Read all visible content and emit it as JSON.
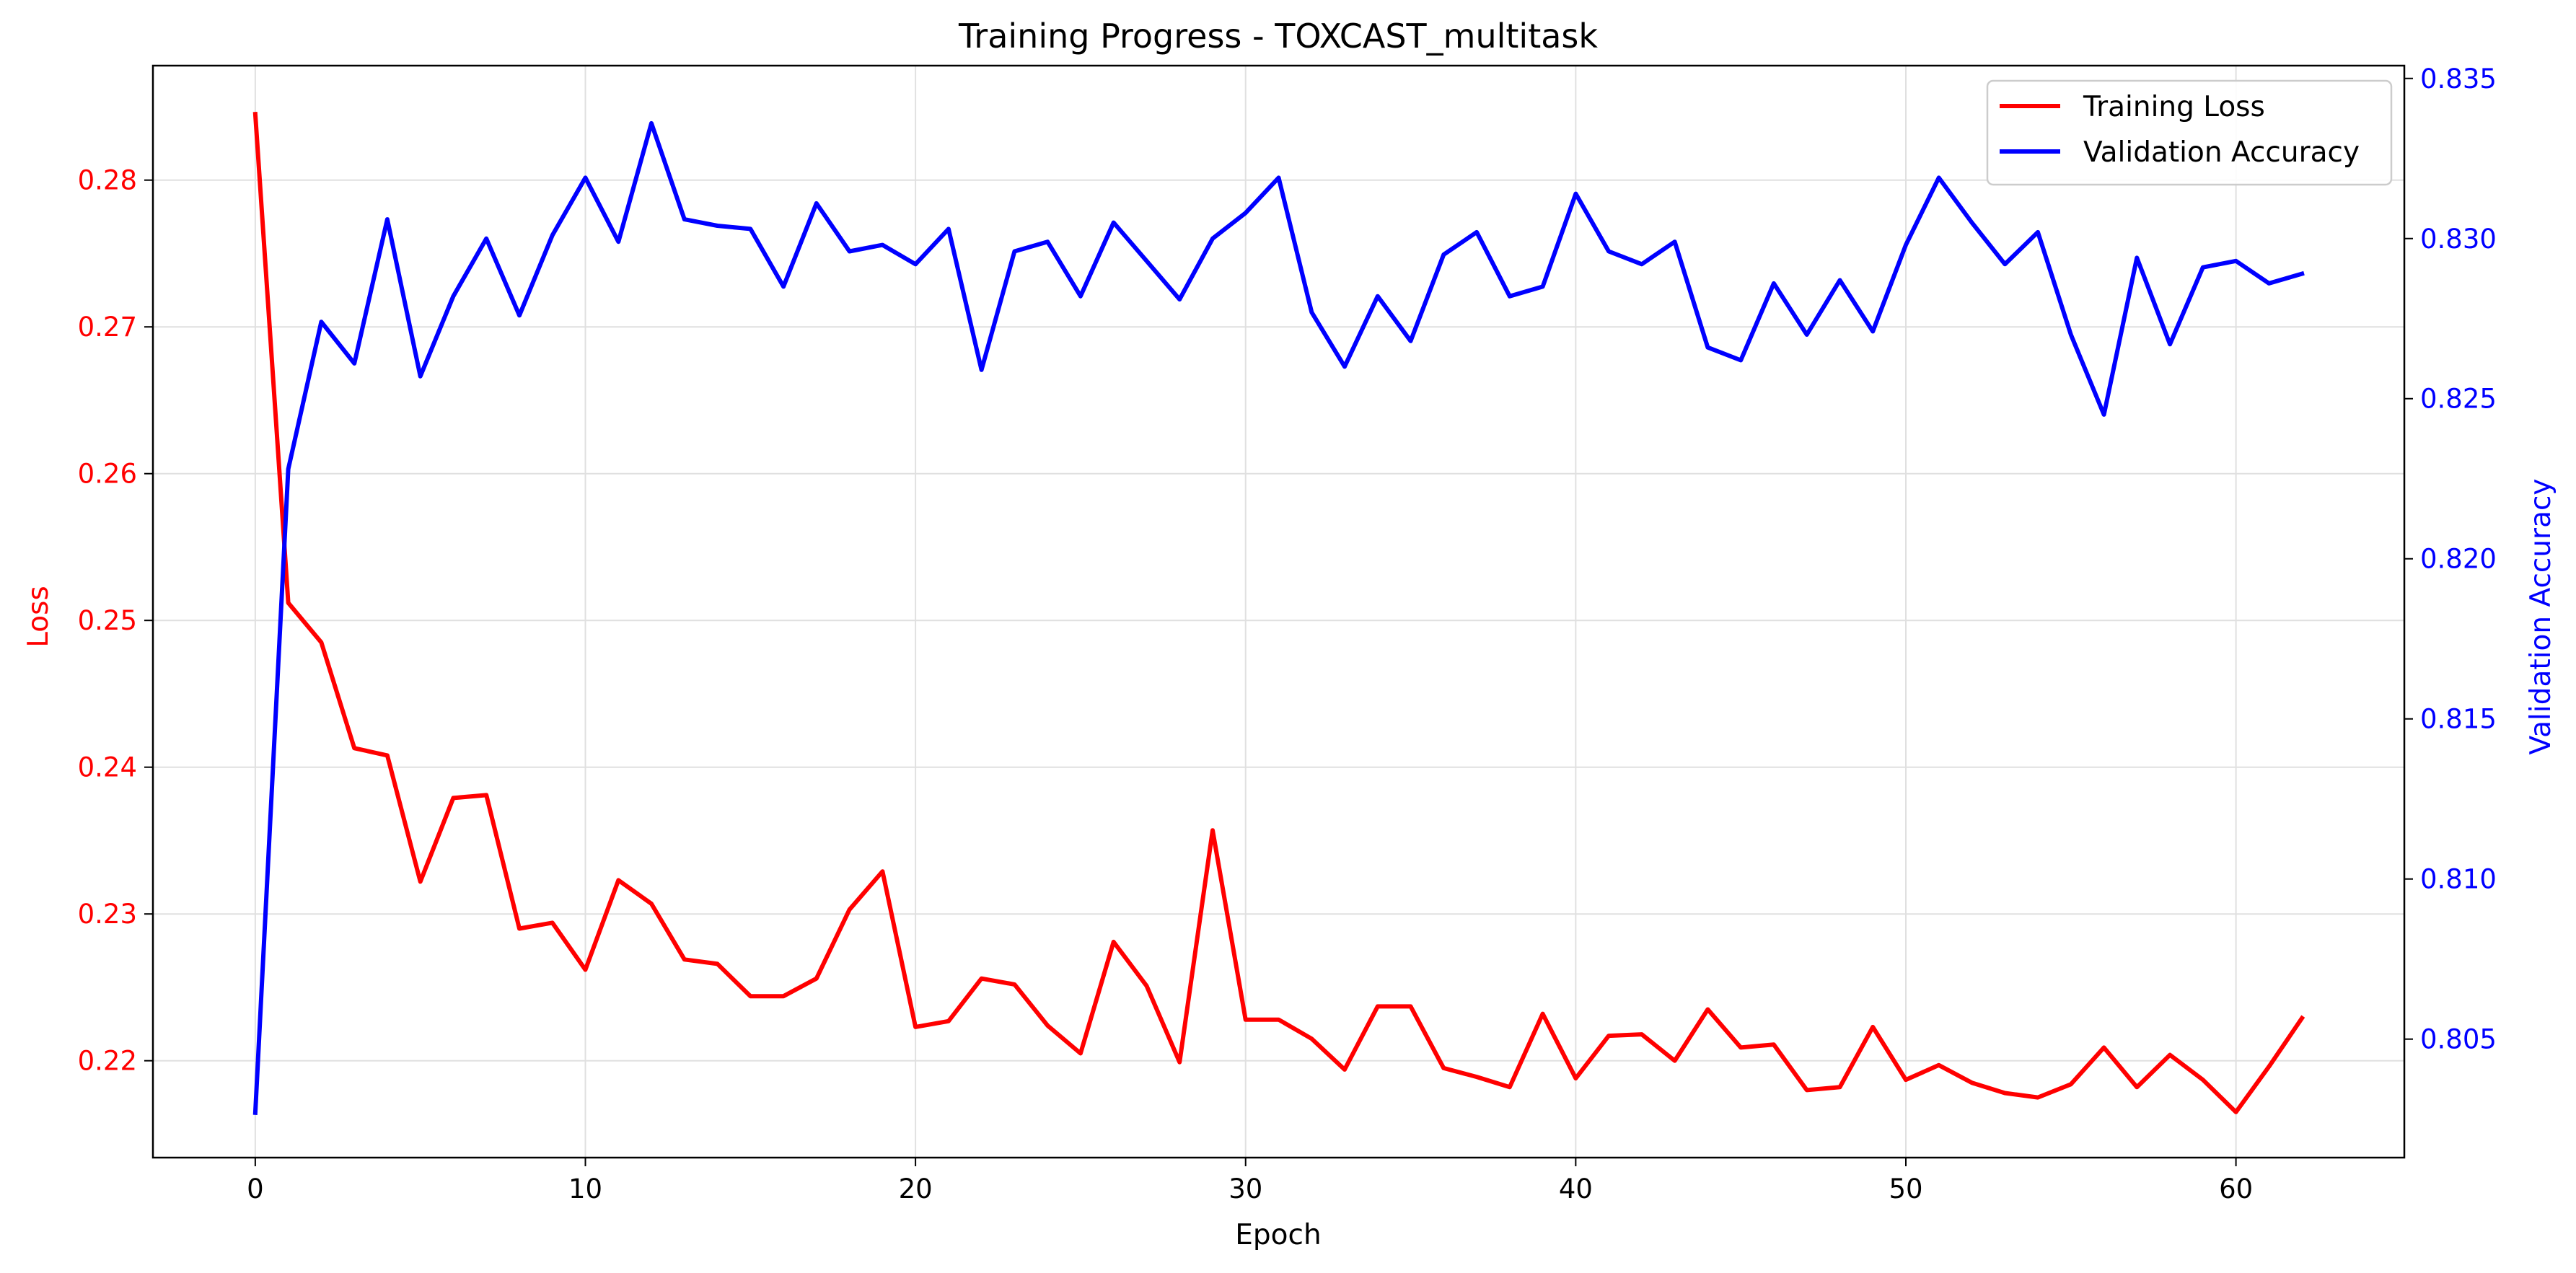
{
  "chart_data": {
    "type": "line",
    "title": "Training Progress - TOXCAST_multitask",
    "xlabel": "Epoch",
    "ylabel_left": "Loss",
    "ylabel_right": "Validation Accuracy",
    "xlim": [
      -3.1,
      65.1
    ],
    "ylim_left": [
      0.2134,
      0.2878
    ],
    "ylim_right": [
      0.8013,
      0.8354
    ],
    "x_ticks": [
      0,
      10,
      20,
      30,
      40,
      50,
      60
    ],
    "y_left_ticks": [
      0.22,
      0.23,
      0.24,
      0.25,
      0.26,
      0.27,
      0.28
    ],
    "y_right_ticks": [
      0.805,
      0.81,
      0.815,
      0.82,
      0.825,
      0.83,
      0.835
    ],
    "grid": true,
    "legend_position": "top-right",
    "colors": {
      "loss": "#ff0000",
      "accuracy": "#0000ff",
      "grid": "#e0e0e0",
      "axis": "#000000"
    },
    "x": [
      0,
      1,
      2,
      3,
      4,
      5,
      6,
      7,
      8,
      9,
      10,
      11,
      12,
      13,
      14,
      15,
      16,
      17,
      18,
      19,
      20,
      21,
      22,
      23,
      24,
      25,
      26,
      27,
      28,
      29,
      30,
      31,
      32,
      33,
      34,
      35,
      36,
      37,
      38,
      39,
      40,
      41,
      42,
      43,
      44,
      45,
      46,
      47,
      48,
      49,
      50,
      51,
      52,
      53,
      54,
      55,
      56,
      57,
      58,
      59,
      60,
      61,
      62
    ],
    "series": [
      {
        "name": "Training Loss",
        "axis": "left",
        "color": "#ff0000",
        "values": [
          0.2845,
          0.2512,
          0.2485,
          0.2413,
          0.2408,
          0.2322,
          0.2379,
          0.2381,
          0.229,
          0.2294,
          0.2262,
          0.2323,
          0.2307,
          0.2269,
          0.2266,
          0.2244,
          0.2244,
          0.2256,
          0.2303,
          0.2329,
          0.2223,
          0.2227,
          0.2256,
          0.2252,
          0.2224,
          0.2205,
          0.2281,
          0.2251,
          0.2199,
          0.2357,
          0.2228,
          0.2228,
          0.2215,
          0.2194,
          0.2237,
          0.2237,
          0.2195,
          0.2189,
          0.2182,
          0.2232,
          0.2188,
          0.2217,
          0.2218,
          0.22,
          0.2235,
          0.2209,
          0.2211,
          0.218,
          0.2182,
          0.2223,
          0.2187,
          0.2197,
          0.2185,
          0.2178,
          0.2175,
          0.2184,
          0.2209,
          0.2182,
          0.2204,
          0.2187,
          0.2165,
          0.2196,
          0.2229
        ]
      },
      {
        "name": "Validation Accuracy",
        "axis": "right",
        "color": "#0000ff",
        "values": [
          0.8027,
          0.8228,
          0.8274,
          0.8261,
          0.8306,
          0.8257,
          0.8282,
          0.83,
          0.8276,
          0.8301,
          0.8319,
          0.8299,
          0.8336,
          0.8306,
          0.8304,
          0.8303,
          0.8285,
          0.8311,
          0.8296,
          0.8298,
          0.8292,
          0.8303,
          0.8259,
          0.8296,
          0.8299,
          0.8282,
          0.8305,
          0.8293,
          0.8281,
          0.83,
          0.8308,
          0.8319,
          0.8277,
          0.826,
          0.8282,
          0.8268,
          0.8295,
          0.8302,
          0.8282,
          0.8285,
          0.8314,
          0.8296,
          0.8292,
          0.8299,
          0.8266,
          0.8262,
          0.8286,
          0.827,
          0.8287,
          0.8271,
          0.8298,
          0.8319,
          0.8305,
          0.8292,
          0.8302,
          0.827,
          0.8245,
          0.8294,
          0.8267,
          0.8291,
          0.8293,
          0.8286,
          0.8289
        ]
      }
    ]
  }
}
